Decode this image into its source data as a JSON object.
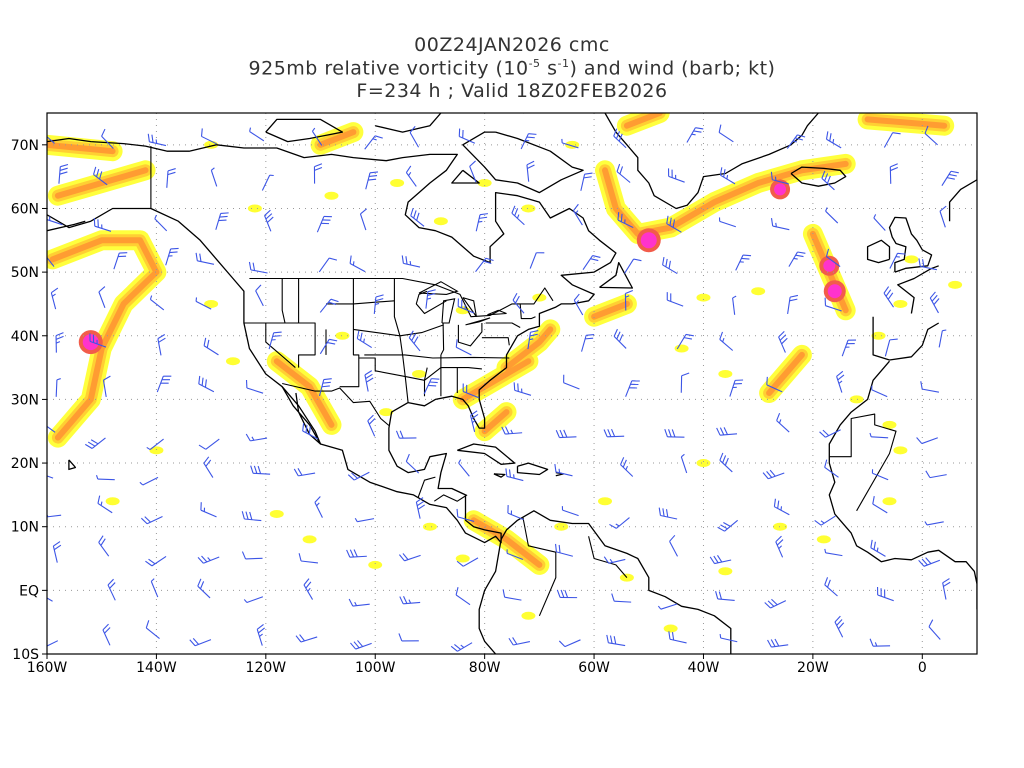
{
  "title": {
    "line1": "00Z24JAN2026 cmc",
    "line2_pre": "925mb relative vorticity (10",
    "line2_exp1": "-5",
    "line2_mid": " s",
    "line2_exp2": "-1",
    "line2_post": ") and wind (barb; kt)",
    "line3": "F=234 h ; Valid 18Z02FEB2026"
  },
  "map": {
    "lon_range": [
      -160,
      10
    ],
    "lat_range": [
      -10,
      75
    ],
    "lat_labels": [
      "70N",
      "60N",
      "50N",
      "40N",
      "30N",
      "20N",
      "10N",
      "EQ",
      "10S"
    ],
    "lat_values": [
      70,
      60,
      50,
      40,
      30,
      20,
      10,
      0,
      -10
    ],
    "lon_labels": [
      "160W",
      "140W",
      "120W",
      "100W",
      "80W",
      "60W",
      "40W",
      "20W",
      "0"
    ],
    "lon_values": [
      -160,
      -140,
      -120,
      -100,
      -80,
      -60,
      -40,
      -20,
      0
    ],
    "colors": {
      "coast": "#000000",
      "barb": "#3c55e6",
      "grid": "#999999",
      "vort_light": "#ffff33",
      "vort_mid": "#ffcc33",
      "vort_orange": "#ff9933",
      "vort_red": "#f25c4a",
      "vort_magenta": "#ff33cc"
    }
  }
}
